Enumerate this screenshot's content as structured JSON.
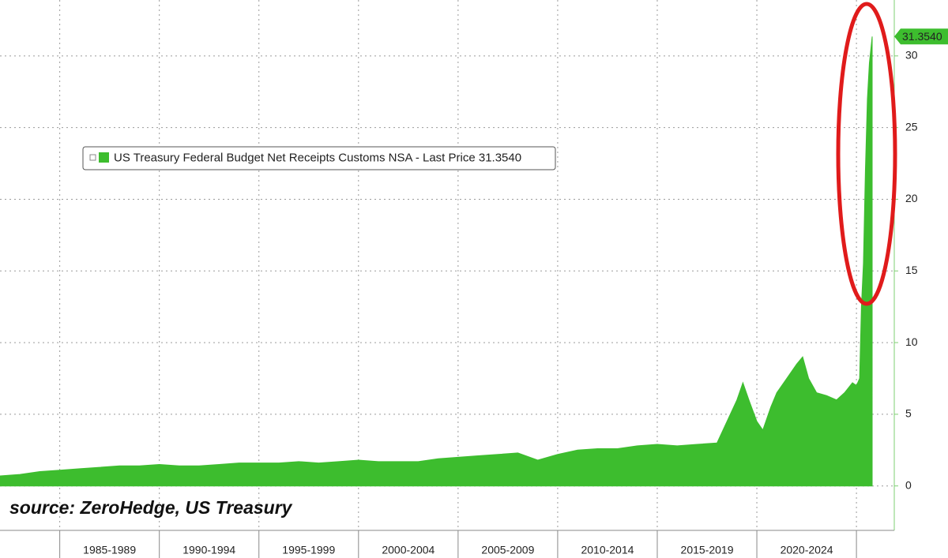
{
  "chart_data": {
    "type": "area",
    "legend": "US Treasury Federal Budget Net Receipts Customs NSA - Last Price 31.3540",
    "annotation": "source: ZeroHedge, US Treasury",
    "color": "#3dbd2e",
    "x": [
      1982.0,
      1983.0,
      1984.0,
      1985.0,
      1986.0,
      1987.0,
      1988.0,
      1989.0,
      1990.0,
      1991.0,
      1992.0,
      1993.0,
      1994.0,
      1995.0,
      1996.0,
      1997.0,
      1998.0,
      1999.0,
      2000.0,
      2001.0,
      2002.0,
      2003.0,
      2004.0,
      2005.0,
      2006.0,
      2007.0,
      2008.0,
      2009.0,
      2010.0,
      2011.0,
      2012.0,
      2013.0,
      2014.0,
      2015.0,
      2016.0,
      2017.0,
      2018.0,
      2018.5,
      2019.0,
      2019.3,
      2019.6,
      2020.0,
      2020.3,
      2020.7,
      2021.0,
      2021.5,
      2022.0,
      2022.3,
      2022.6,
      2023.0,
      2023.5,
      2024.0,
      2024.4,
      2024.8,
      2025.0,
      2025.16,
      2025.25,
      2025.35,
      2025.45,
      2025.55,
      2025.65,
      2025.79
    ],
    "values": [
      0.7,
      0.8,
      1.0,
      1.1,
      1.2,
      1.3,
      1.4,
      1.4,
      1.5,
      1.4,
      1.4,
      1.5,
      1.6,
      1.6,
      1.6,
      1.7,
      1.6,
      1.7,
      1.8,
      1.7,
      1.7,
      1.7,
      1.9,
      2.0,
      2.1,
      2.2,
      2.3,
      1.8,
      2.2,
      2.5,
      2.6,
      2.6,
      2.8,
      2.9,
      2.8,
      2.9,
      3.0,
      4.5,
      6.0,
      7.2,
      6.0,
      4.5,
      3.9,
      5.5,
      6.5,
      7.5,
      8.5,
      9.0,
      7.5,
      6.5,
      6.3,
      6.0,
      6.5,
      7.2,
      7.0,
      7.5,
      12.5,
      15.5,
      22.0,
      27.0,
      29.5,
      31.354
    ],
    "last_price": {
      "value": 31.354,
      "label": "31.3540"
    },
    "xlim": [
      1982.0,
      2026.9
    ],
    "xticks": [
      1985,
      1990,
      1995,
      2000,
      2005,
      2010,
      2015,
      2020,
      2025
    ],
    "x_periods": [
      "1985-1989",
      "1990-1994",
      "1995-1999",
      "2000-2004",
      "2005-2009",
      "2010-2014",
      "2015-2019",
      "2020-2024"
    ],
    "ylim": [
      -3.1,
      33.9
    ],
    "yticks": [
      0,
      5,
      10,
      15,
      20,
      25,
      30
    ],
    "grid": true
  }
}
